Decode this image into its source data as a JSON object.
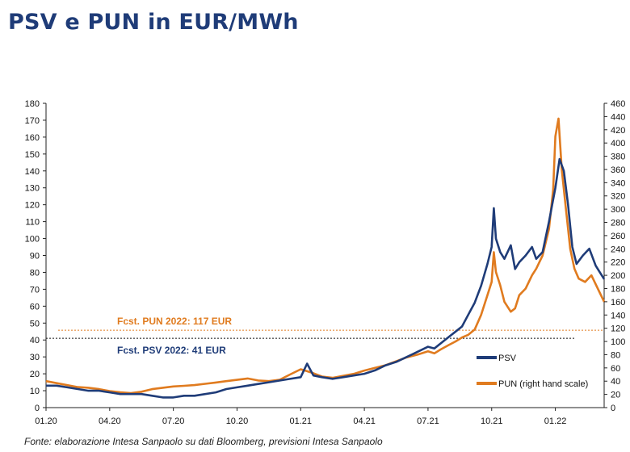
{
  "title": "PSV e PUN in EUR/MWh",
  "source": "Fonte: elaborazione Intesa Sanpaolo su dati Bloomberg, previsioni Intesa Sanpaolo",
  "colors": {
    "psv": "#1f3c78",
    "pun": "#e07b1f",
    "title": "#1f3c78"
  },
  "chart_data": {
    "type": "line",
    "x_tick_labels": [
      "01.20",
      "04.20",
      "07.20",
      "10.20",
      "01.21",
      "04.21",
      "07.21",
      "10.21",
      "01.22"
    ],
    "x_range_months": [
      0,
      26.3
    ],
    "left_axis": {
      "ticks": [
        0,
        10,
        20,
        30,
        40,
        50,
        60,
        70,
        80,
        90,
        100,
        110,
        120,
        130,
        140,
        150,
        160,
        170,
        180
      ],
      "ylim": [
        0,
        180
      ]
    },
    "right_axis": {
      "ticks": [
        0,
        20,
        40,
        60,
        80,
        100,
        120,
        140,
        160,
        180,
        200,
        220,
        240,
        260,
        280,
        300,
        320,
        340,
        360,
        380,
        400,
        420,
        440,
        460
      ],
      "ylim": [
        0,
        460
      ]
    },
    "annotations": {
      "pun_forecast": {
        "label": "Fcst. PUN 2022: 117 EUR",
        "value": 117,
        "axis": "right"
      },
      "psv_forecast": {
        "label": "Fcst. PSV 2022: 41 EUR",
        "value": 41,
        "axis": "left"
      }
    },
    "series": [
      {
        "name": "PSV",
        "axis": "left",
        "points": [
          [
            0,
            13
          ],
          [
            0.5,
            13
          ],
          [
            1,
            12
          ],
          [
            1.5,
            11
          ],
          [
            2,
            10
          ],
          [
            2.5,
            10
          ],
          [
            3,
            9
          ],
          [
            3.5,
            8
          ],
          [
            4,
            8
          ],
          [
            4.5,
            8
          ],
          [
            5,
            7
          ],
          [
            5.5,
            6
          ],
          [
            6,
            6
          ],
          [
            6.5,
            7
          ],
          [
            7,
            7
          ],
          [
            7.5,
            8
          ],
          [
            8,
            9
          ],
          [
            8.5,
            11
          ],
          [
            9,
            12
          ],
          [
            9.5,
            13
          ],
          [
            10,
            14
          ],
          [
            10.5,
            15
          ],
          [
            11,
            16
          ],
          [
            11.5,
            17
          ],
          [
            12,
            18
          ],
          [
            12.3,
            26
          ],
          [
            12.6,
            19
          ],
          [
            13,
            18
          ],
          [
            13.5,
            17
          ],
          [
            14,
            18
          ],
          [
            14.5,
            19
          ],
          [
            15,
            20
          ],
          [
            15.5,
            22
          ],
          [
            16,
            25
          ],
          [
            16.5,
            27
          ],
          [
            17,
            30
          ],
          [
            17.5,
            33
          ],
          [
            18,
            36
          ],
          [
            18.3,
            35
          ],
          [
            18.6,
            38
          ],
          [
            19,
            42
          ],
          [
            19.3,
            45
          ],
          [
            19.6,
            48
          ],
          [
            19.9,
            55
          ],
          [
            20.2,
            62
          ],
          [
            20.5,
            72
          ],
          [
            20.8,
            85
          ],
          [
            21,
            95
          ],
          [
            21.1,
            118
          ],
          [
            21.2,
            100
          ],
          [
            21.4,
            92
          ],
          [
            21.6,
            88
          ],
          [
            21.9,
            96
          ],
          [
            22.1,
            82
          ],
          [
            22.3,
            86
          ],
          [
            22.6,
            90
          ],
          [
            22.9,
            95
          ],
          [
            23.1,
            88
          ],
          [
            23.4,
            92
          ],
          [
            23.7,
            110
          ],
          [
            24,
            130
          ],
          [
            24.2,
            147
          ],
          [
            24.4,
            140
          ],
          [
            24.6,
            120
          ],
          [
            24.8,
            95
          ],
          [
            25,
            85
          ],
          [
            25.3,
            90
          ],
          [
            25.6,
            94
          ],
          [
            25.9,
            84
          ],
          [
            26.1,
            80
          ],
          [
            26.3,
            76
          ]
        ]
      },
      {
        "name": "PUN (right hand scale)",
        "axis": "right",
        "points": [
          [
            0,
            40
          ],
          [
            0.5,
            37
          ],
          [
            1,
            34
          ],
          [
            1.5,
            31
          ],
          [
            2,
            30
          ],
          [
            2.5,
            28
          ],
          [
            3,
            25
          ],
          [
            3.5,
            23
          ],
          [
            4,
            22
          ],
          [
            4.5,
            24
          ],
          [
            5,
            28
          ],
          [
            5.5,
            30
          ],
          [
            6,
            32
          ],
          [
            6.5,
            33
          ],
          [
            7,
            34
          ],
          [
            7.5,
            36
          ],
          [
            8,
            38
          ],
          [
            8.5,
            40
          ],
          [
            9,
            42
          ],
          [
            9.5,
            44
          ],
          [
            10,
            41
          ],
          [
            10.5,
            40
          ],
          [
            11,
            42
          ],
          [
            11.5,
            50
          ],
          [
            12,
            58
          ],
          [
            12.3,
            55
          ],
          [
            12.6,
            52
          ],
          [
            13,
            47
          ],
          [
            13.5,
            45
          ],
          [
            14,
            48
          ],
          [
            14.5,
            51
          ],
          [
            15,
            56
          ],
          [
            15.5,
            60
          ],
          [
            16,
            64
          ],
          [
            16.5,
            70
          ],
          [
            17,
            76
          ],
          [
            17.5,
            80
          ],
          [
            18,
            85
          ],
          [
            18.3,
            82
          ],
          [
            18.6,
            88
          ],
          [
            19,
            95
          ],
          [
            19.3,
            100
          ],
          [
            19.6,
            106
          ],
          [
            19.9,
            110
          ],
          [
            20.2,
            118
          ],
          [
            20.5,
            140
          ],
          [
            20.8,
            170
          ],
          [
            21,
            190
          ],
          [
            21.1,
            235
          ],
          [
            21.2,
            205
          ],
          [
            21.4,
            185
          ],
          [
            21.6,
            160
          ],
          [
            21.9,
            145
          ],
          [
            22.1,
            150
          ],
          [
            22.3,
            170
          ],
          [
            22.6,
            180
          ],
          [
            22.9,
            200
          ],
          [
            23.1,
            210
          ],
          [
            23.4,
            230
          ],
          [
            23.7,
            270
          ],
          [
            23.9,
            330
          ],
          [
            24,
            410
          ],
          [
            24.15,
            437
          ],
          [
            24.3,
            360
          ],
          [
            24.5,
            300
          ],
          [
            24.7,
            240
          ],
          [
            24.9,
            210
          ],
          [
            25.1,
            195
          ],
          [
            25.4,
            190
          ],
          [
            25.7,
            200
          ],
          [
            26,
            180
          ],
          [
            26.3,
            160
          ]
        ]
      }
    ]
  }
}
